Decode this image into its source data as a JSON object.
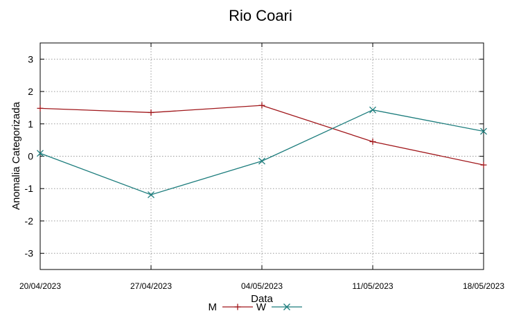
{
  "chart_data": {
    "type": "line",
    "title": "Rio Coari",
    "xlabel": "Data",
    "ylabel": "Anomalia Categorizada",
    "categories": [
      "20/04/2023",
      "27/04/2023",
      "04/05/2023",
      "11/05/2023",
      "18/05/2023"
    ],
    "yticks": [
      "3",
      "2",
      "1",
      "0",
      "-1",
      "-2",
      "-3"
    ],
    "ylim": [
      -3.5,
      3.5
    ],
    "grid": true,
    "legend_position": "bottom-center",
    "series": [
      {
        "name": "M",
        "color": "#a0161a",
        "marker": "plus",
        "values": [
          1.48,
          1.35,
          1.57,
          0.45,
          -0.27
        ]
      },
      {
        "name": "W",
        "color": "#1b7c7c",
        "marker": "cross",
        "values": [
          0.09,
          -1.19,
          -0.15,
          1.43,
          0.77
        ]
      }
    ]
  }
}
